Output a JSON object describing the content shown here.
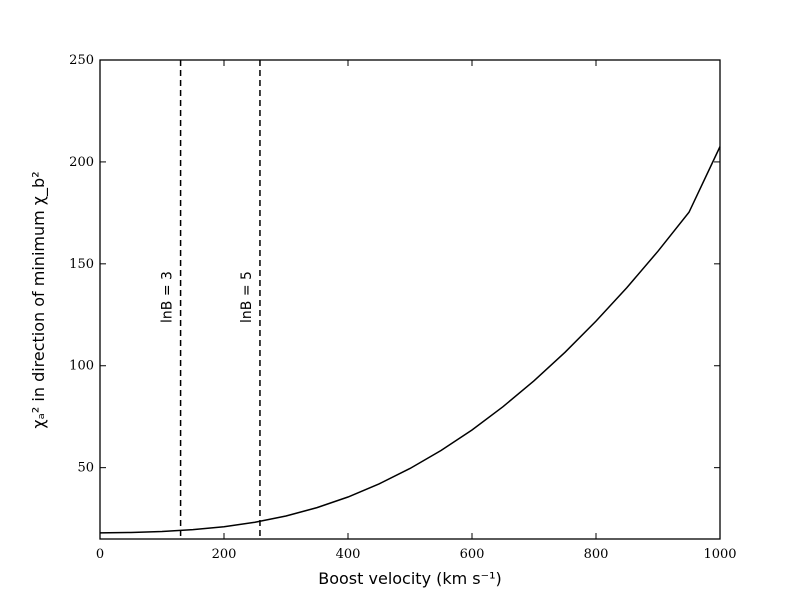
{
  "chart_data": {
    "type": "line",
    "xlabel": "Boost velocity (km s⁻¹)",
    "ylabel": "χₐ² in direction of minimum χ_b²",
    "xlim": [
      0,
      1000
    ],
    "ylim": [
      15,
      250
    ],
    "x_ticks": [
      0,
      200,
      400,
      600,
      800,
      1000
    ],
    "y_ticks": [
      50,
      100,
      150,
      200,
      250
    ],
    "grid": false,
    "series": [
      {
        "x": [
          0,
          50,
          100,
          150,
          200,
          250,
          300,
          350,
          400,
          450,
          500,
          550,
          600,
          650,
          700,
          750,
          800,
          850,
          900,
          950,
          1000
        ],
        "y": [
          18.0,
          18.2,
          18.7,
          19.6,
          21.0,
          23.2,
          26.3,
          30.4,
          35.6,
          42.0,
          49.6,
          58.4,
          68.5,
          79.9,
          92.6,
          106.6,
          121.9,
          138.4,
          156.2,
          175.3,
          207.5
        ]
      }
    ],
    "annotations": [
      {
        "x": 130,
        "label": "lnB = 3",
        "style": "dashed"
      },
      {
        "x": 258,
        "label": "lnB = 5",
        "style": "dashed"
      }
    ]
  }
}
